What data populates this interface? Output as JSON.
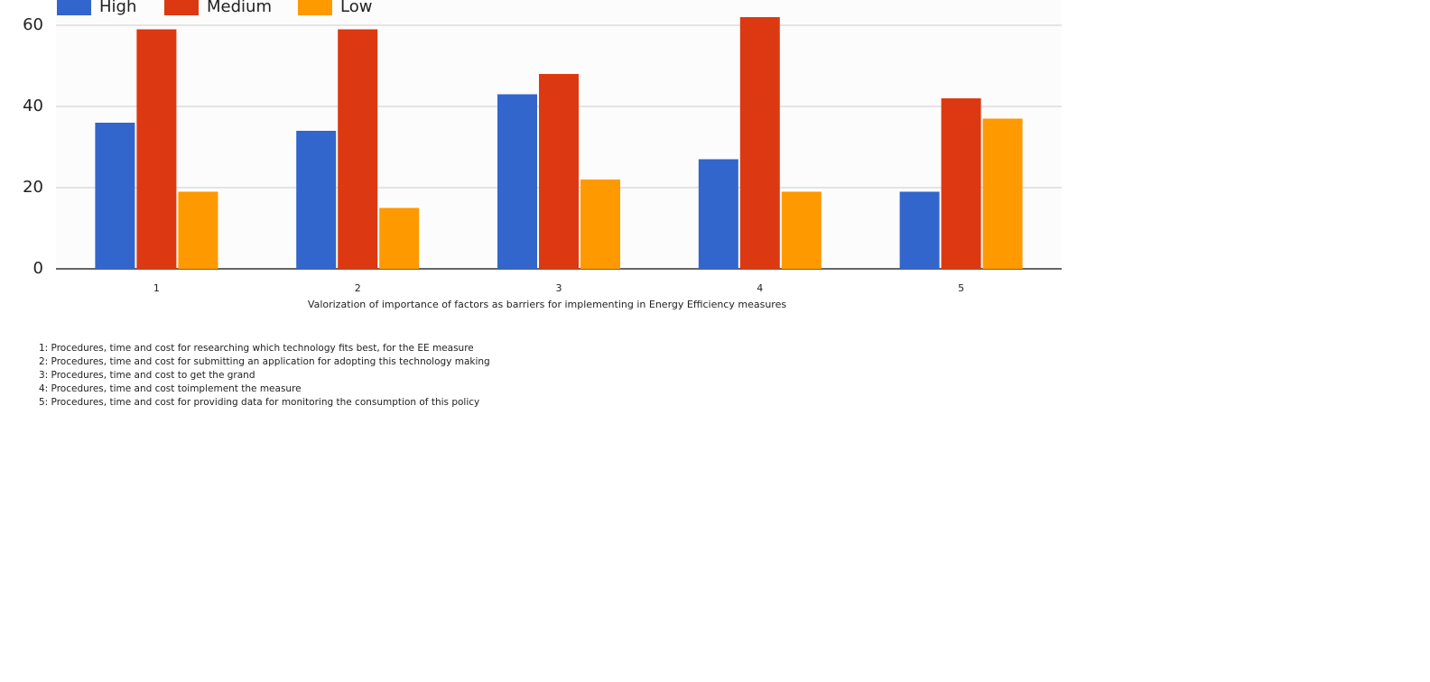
{
  "chart_data": {
    "type": "bar",
    "x_label": "Valorization of importance of factors as barriers for implementing in Energy Efficiency measures",
    "categories": [
      "1",
      "2",
      "3",
      "4",
      "5"
    ],
    "series": [
      {
        "name": "High",
        "color": "#3366cc",
        "values": [
          36,
          34,
          43,
          27,
          19
        ]
      },
      {
        "name": "Medium",
        "color": "#dc3912",
        "values": [
          59,
          59,
          48,
          62,
          42
        ]
      },
      {
        "name": "Low",
        "color": "#ff9900",
        "values": [
          19,
          15,
          22,
          19,
          37
        ]
      }
    ],
    "ylim": [
      0,
      66
    ],
    "yticks": [
      0,
      20,
      40,
      60
    ],
    "grid": true,
    "legend": "top",
    "notes": [
      "1: Procedures, time and cost for researching which technology fits best, for the EE measure",
      "2: Procedures, time and cost for submitting an application for adopting this technology making",
      "3: Procedures, time and cost to get the grand",
      "4: Procedures, time and cost toimplement the measure",
      "5: Procedures, time and cost for providing data for monitoring the consumption of this policy"
    ]
  }
}
